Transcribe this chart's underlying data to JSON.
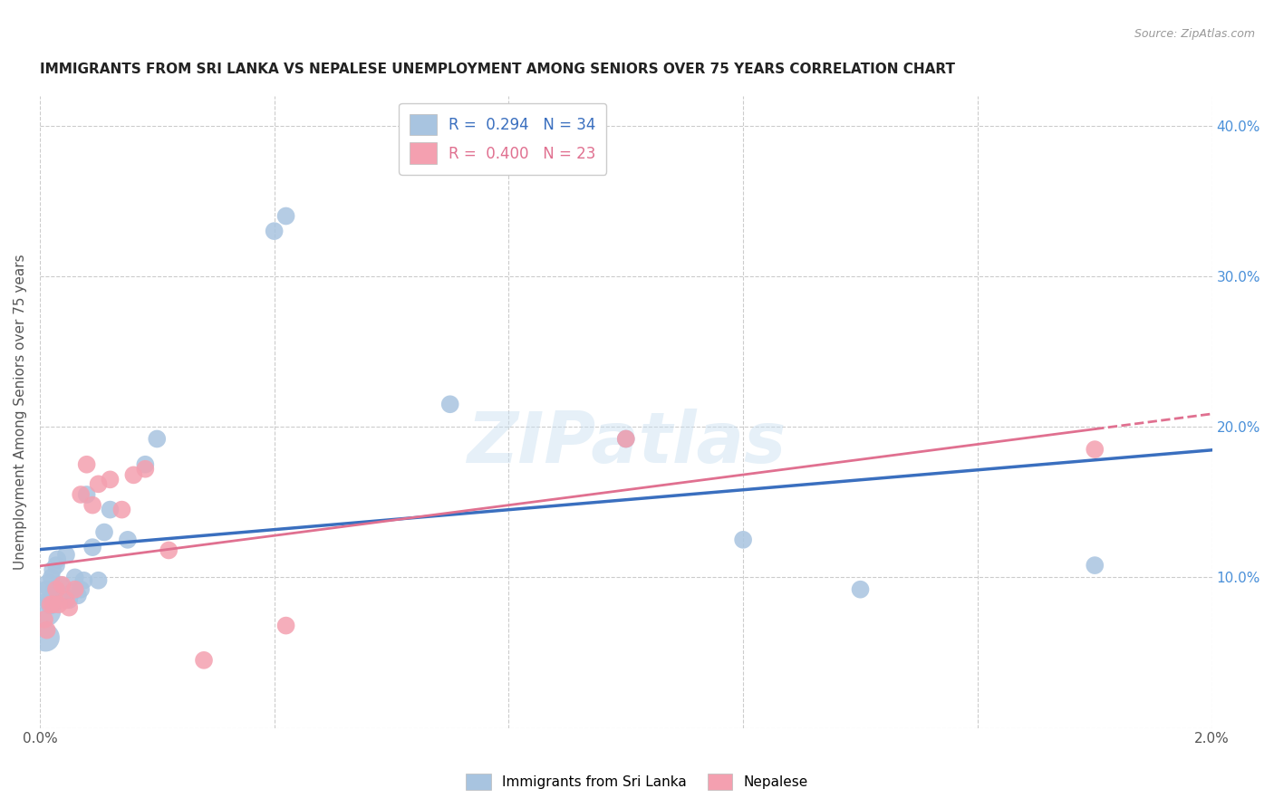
{
  "title": "IMMIGRANTS FROM SRI LANKA VS NEPALESE UNEMPLOYMENT AMONG SENIORS OVER 75 YEARS CORRELATION CHART",
  "source": "Source: ZipAtlas.com",
  "xlabel": "",
  "ylabel": "Unemployment Among Seniors over 75 years",
  "xlim": [
    0.0,
    0.02
  ],
  "ylim": [
    0.0,
    0.42
  ],
  "x_ticks": [
    0.0,
    0.004,
    0.008,
    0.012,
    0.016,
    0.02
  ],
  "x_tick_labels": [
    "0.0%",
    "",
    "",
    "",
    "",
    "2.0%"
  ],
  "y_ticks_right": [
    0.0,
    0.1,
    0.2,
    0.3,
    0.4
  ],
  "y_tick_labels_right": [
    "",
    "10.0%",
    "20.0%",
    "30.0%",
    "40.0%"
  ],
  "sri_lanka_R": 0.294,
  "sri_lanka_N": 34,
  "nepalese_R": 0.4,
  "nepalese_N": 23,
  "sri_lanka_color": "#a8c4e0",
  "nepalese_color": "#f4a0b0",
  "sri_lanka_line_color": "#3a6fbf",
  "nepalese_line_color": "#e07090",
  "watermark": "ZIPatlas",
  "sri_lanka_x": [
    8e-05,
    0.0001,
    0.00012,
    0.00015,
    0.00018,
    0.0002,
    0.00022,
    0.00025,
    0.00028,
    0.0003,
    0.00035,
    0.0004,
    0.00045,
    0.0005,
    0.00055,
    0.0006,
    0.00065,
    0.0007,
    0.00075,
    0.0008,
    0.0009,
    0.001,
    0.0011,
    0.0012,
    0.0015,
    0.0018,
    0.002,
    0.004,
    0.0042,
    0.007,
    0.01,
    0.012,
    0.014,
    0.018
  ],
  "sri_lanka_y": [
    0.078,
    0.06,
    0.09,
    0.095,
    0.082,
    0.1,
    0.105,
    0.092,
    0.108,
    0.112,
    0.095,
    0.088,
    0.115,
    0.085,
    0.09,
    0.1,
    0.088,
    0.092,
    0.098,
    0.155,
    0.12,
    0.098,
    0.13,
    0.145,
    0.125,
    0.175,
    0.192,
    0.33,
    0.34,
    0.215,
    0.192,
    0.125,
    0.092,
    0.108
  ],
  "sri_lanka_sizes": [
    700,
    500,
    350,
    300,
    250,
    200,
    200,
    200,
    200,
    200,
    200,
    200,
    200,
    200,
    200,
    200,
    200,
    200,
    200,
    200,
    200,
    200,
    200,
    200,
    200,
    200,
    200,
    200,
    200,
    200,
    200,
    200,
    200,
    200
  ],
  "nepalese_x": [
    8e-05,
    0.00012,
    0.00018,
    0.00022,
    0.00028,
    0.00032,
    0.00038,
    0.00045,
    0.0005,
    0.0006,
    0.0007,
    0.0008,
    0.0009,
    0.001,
    0.0012,
    0.0014,
    0.0016,
    0.0018,
    0.0022,
    0.0028,
    0.0042,
    0.01,
    0.018
  ],
  "nepalese_y": [
    0.072,
    0.065,
    0.082,
    0.082,
    0.092,
    0.082,
    0.095,
    0.085,
    0.08,
    0.092,
    0.155,
    0.175,
    0.148,
    0.162,
    0.165,
    0.145,
    0.168,
    0.172,
    0.118,
    0.045,
    0.068,
    0.192,
    0.185
  ],
  "nepalese_sizes": [
    200,
    200,
    200,
    200,
    200,
    200,
    200,
    200,
    200,
    200,
    200,
    200,
    200,
    200,
    200,
    200,
    200,
    200,
    200,
    200,
    200,
    200,
    200
  ]
}
